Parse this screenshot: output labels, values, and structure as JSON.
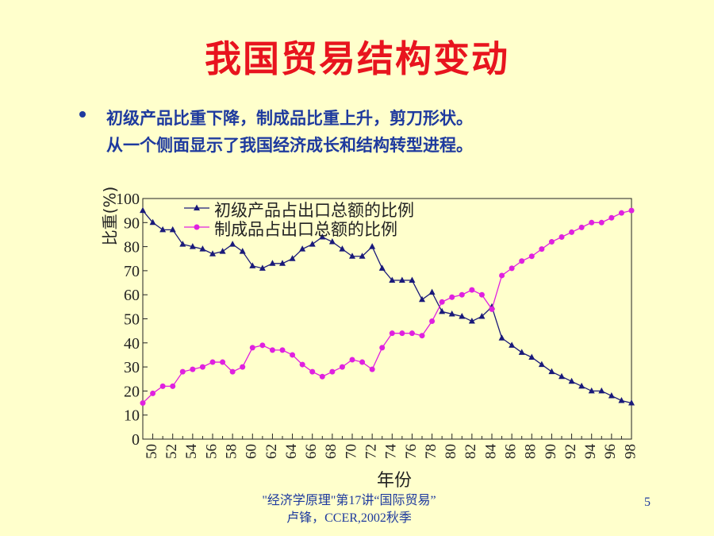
{
  "slide": {
    "title": "我国贸易结构变动",
    "bullet_lines": [
      "初级产品比重下降，制成品比重上升，剪刀形状。",
      "从一个侧面显示了我国经济成长和结构转型进程。"
    ],
    "footer_line1": "\"经济学原理\"第17讲“国际贸易”",
    "footer_line2": "卢锋，CCER,2002秋季",
    "page_number": "5"
  },
  "chart_data": {
    "type": "line",
    "title": "",
    "xlabel": "年份",
    "ylabel": "比重(%)",
    "ylim": [
      0,
      100
    ],
    "xlim": [
      49,
      98
    ],
    "y_ticks": [
      0,
      10,
      20,
      30,
      40,
      50,
      60,
      70,
      80,
      90,
      100
    ],
    "x_ticks": [
      "50",
      "52",
      "54",
      "56",
      "58",
      "60",
      "62",
      "64",
      "66",
      "68",
      "70",
      "72",
      "74",
      "76",
      "78",
      "80",
      "82",
      "84",
      "86",
      "88",
      "90",
      "92",
      "94",
      "96",
      "98"
    ],
    "grid": false,
    "legend_position": "top",
    "x": [
      49,
      50,
      51,
      52,
      53,
      54,
      55,
      56,
      57,
      58,
      59,
      60,
      61,
      62,
      63,
      64,
      65,
      66,
      67,
      68,
      69,
      70,
      71,
      72,
      73,
      74,
      75,
      76,
      77,
      78,
      79,
      80,
      81,
      82,
      83,
      84,
      85,
      86,
      87,
      88,
      89,
      90,
      91,
      92,
      93,
      94,
      95,
      96,
      97,
      98
    ],
    "series": [
      {
        "name": "初级产品占出口总额的比例",
        "color": "#1A1A7A",
        "marker": "triangle",
        "values": [
          95,
          90,
          87,
          87,
          81,
          80,
          79,
          77,
          78,
          81,
          78,
          72,
          71,
          73,
          73,
          75,
          79,
          81,
          84,
          82,
          79,
          76,
          76,
          80,
          71,
          66,
          66,
          66,
          58,
          61,
          53,
          52,
          51,
          49,
          51,
          55,
          42,
          39,
          36,
          34,
          31,
          28,
          26,
          24,
          22,
          20,
          20,
          18,
          16,
          15
        ]
      },
      {
        "name": "制成品占出口总额的比例",
        "color": "#E020E0",
        "marker": "circle",
        "values": [
          15,
          19,
          22,
          22,
          28,
          29,
          30,
          32,
          32,
          28,
          30,
          38,
          39,
          37,
          37,
          35,
          31,
          28,
          26,
          28,
          30,
          33,
          32,
          29,
          38,
          44,
          44,
          44,
          43,
          49,
          57,
          59,
          60,
          62,
          60,
          54,
          68,
          71,
          74,
          76,
          79,
          82,
          84,
          86,
          88,
          90,
          90,
          92,
          94,
          95
        ]
      }
    ]
  }
}
